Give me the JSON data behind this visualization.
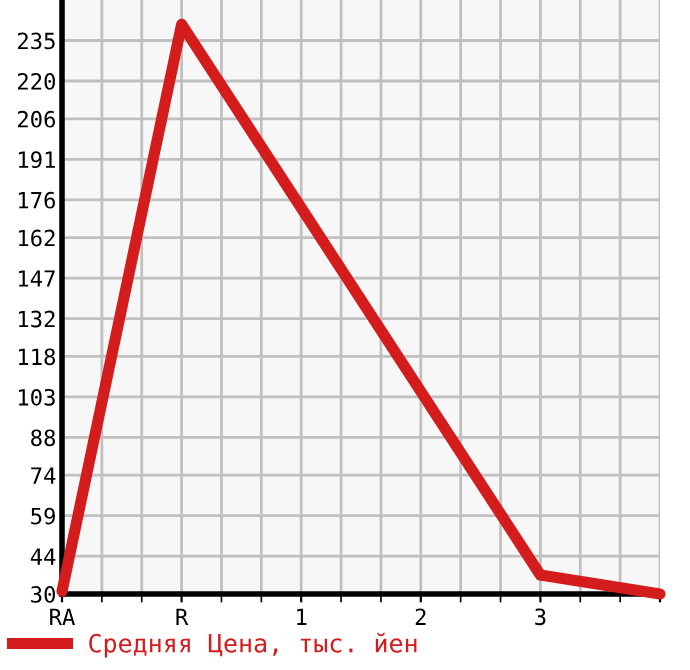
{
  "chart_data": {
    "type": "line",
    "categories": [
      "RA",
      "R",
      "1",
      "2",
      "3",
      null
    ],
    "series": [
      {
        "name": "Средняя Цена, тыс. йен",
        "color": "#d41c1c",
        "values": [
          31,
          241,
          173,
          105,
          37,
          30
        ]
      }
    ],
    "ylim": [
      30,
      250
    ],
    "yticks": [
      30,
      44,
      59,
      74,
      88,
      103,
      118,
      132,
      147,
      162,
      176,
      191,
      206,
      220,
      235
    ],
    "grid": true,
    "legend": "bottom left",
    "marker": "none",
    "line_style": "solid"
  }
}
